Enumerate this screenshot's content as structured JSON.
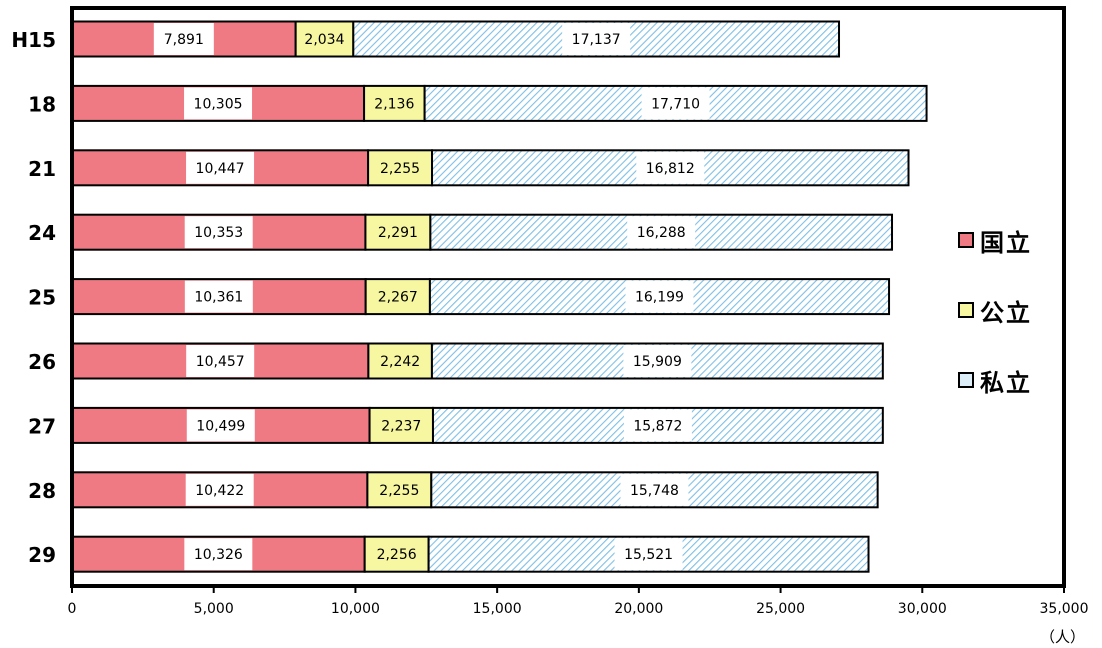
{
  "chart_data": {
    "type": "bar",
    "orientation": "horizontal",
    "stacked": true,
    "categories": [
      "H15",
      "18",
      "21",
      "24",
      "25",
      "26",
      "27",
      "28",
      "29"
    ],
    "series": [
      {
        "name": "国立",
        "color": "#f07a83",
        "pattern": "solid",
        "values": [
          7891,
          10305,
          10447,
          10353,
          10361,
          10457,
          10499,
          10422,
          10326
        ]
      },
      {
        "name": "公立",
        "color": "#f6f7a0",
        "pattern": "solid",
        "values": [
          2034,
          2136,
          2255,
          2291,
          2267,
          2242,
          2237,
          2255,
          2256
        ]
      },
      {
        "name": "私立",
        "color": "#8fc6e8",
        "pattern": "hatched",
        "values": [
          17137,
          17710,
          16812,
          16288,
          16199,
          15909,
          15872,
          15748,
          15521
        ]
      }
    ],
    "data_labels": [
      [
        "7,891",
        "10,305",
        "10,447",
        "10,353",
        "10,361",
        "10,457",
        "10,499",
        "10,422",
        "10,326"
      ],
      [
        "2,034",
        "2,136",
        "2,255",
        "2,291",
        "2,267",
        "2,242",
        "2,237",
        "2,255",
        "2,256"
      ],
      [
        "17,137",
        "17,710",
        "16,812",
        "16,288",
        "16,199",
        "15,909",
        "15,872",
        "15,748",
        "15,521"
      ]
    ],
    "xlim": [
      0,
      35000
    ],
    "xticks": [
      0,
      5000,
      10000,
      15000,
      20000,
      25000,
      30000,
      35000
    ],
    "xtick_labels": [
      "0",
      "5,000",
      "10,000",
      "15,000",
      "20,000",
      "25,000",
      "30,000",
      "35,000"
    ],
    "unit_label": "（人）",
    "legend_position": "right",
    "grid": false
  },
  "legend": {
    "items": [
      {
        "label": "国立",
        "color": "#f07a83"
      },
      {
        "label": "公立",
        "color": "#f6f7a0"
      },
      {
        "label": "私立",
        "color": "#ddeef9"
      }
    ]
  }
}
